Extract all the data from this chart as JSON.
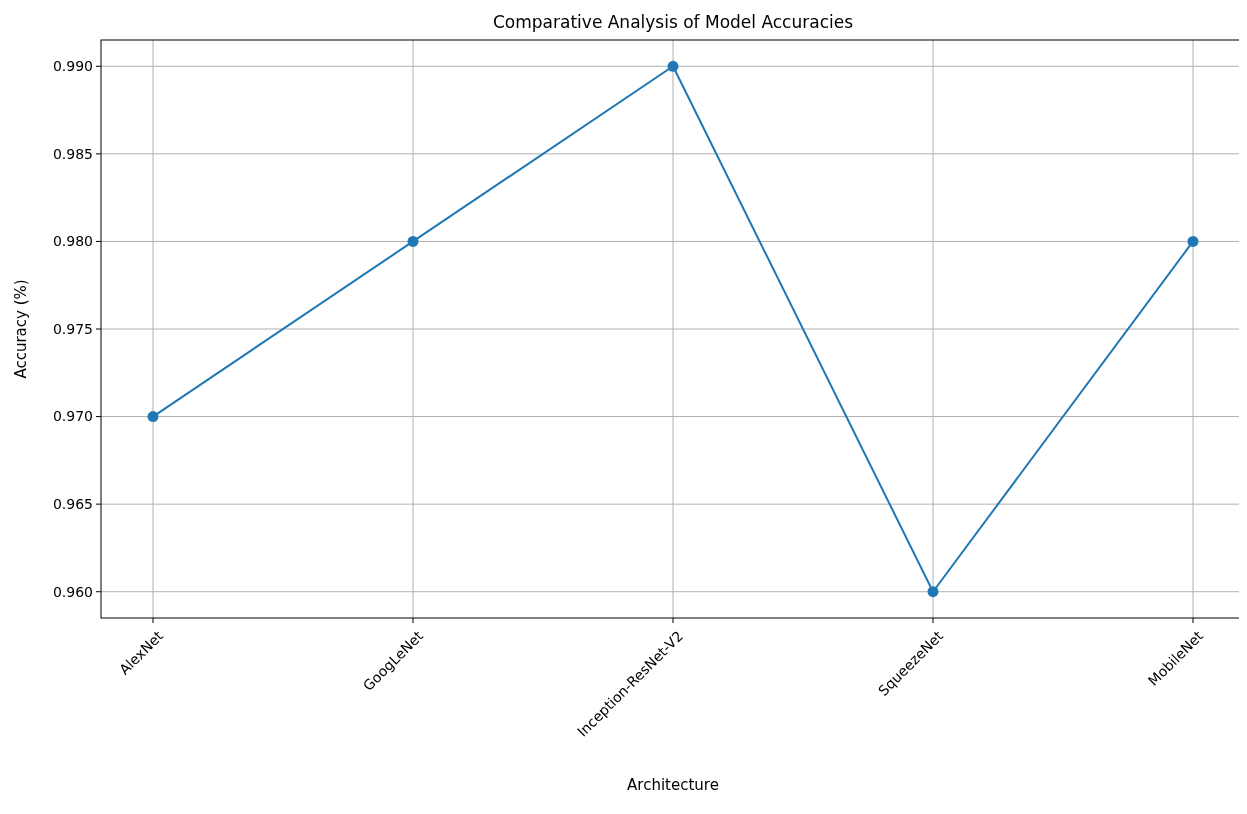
{
  "chart_data": {
    "type": "line",
    "title": "Comparative Analysis of Model Accuracies",
    "xlabel": "Architecture",
    "ylabel": "Accuracy (%)",
    "categories": [
      "AlexNet",
      "GoogLeNet",
      "Inception-ResNet-V2",
      "SqueezeNet",
      "MobileNet"
    ],
    "series": [
      {
        "color": "#1f77b4",
        "values": [
          0.97,
          0.98,
          0.99,
          0.96,
          0.98
        ]
      }
    ],
    "ylim": [
      0.9585,
      0.9915
    ],
    "yticks": [
      {
        "value": 0.96,
        "label": "0.960"
      },
      {
        "value": 0.965,
        "label": "0.965"
      },
      {
        "value": 0.97,
        "label": "0.970"
      },
      {
        "value": 0.975,
        "label": "0.975"
      },
      {
        "value": 0.98,
        "label": "0.980"
      },
      {
        "value": 0.985,
        "label": "0.985"
      },
      {
        "value": 0.99,
        "label": "0.990"
      }
    ],
    "grid": true,
    "marker": "circle",
    "line_style": "solid"
  }
}
